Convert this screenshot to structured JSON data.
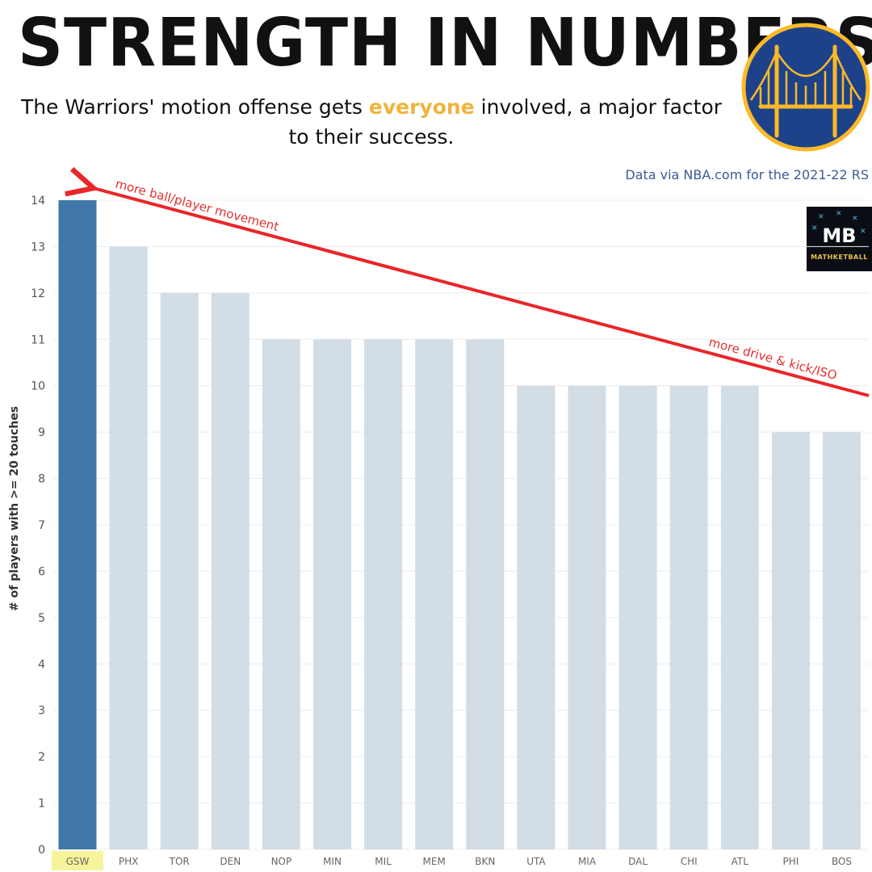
{
  "header": {
    "title": "STRENGTH IN NUMBERS",
    "subtitle_before": "The Warriors' motion offense gets ",
    "subtitle_highlight": "everyone",
    "subtitle_after": " involved, a major factor to their success.",
    "highlight_color": "#f0b43c"
  },
  "source": "Data via NBA.com for the 2021-22 RS",
  "badge": {
    "text": "MB",
    "subtext": "MATHKETBALL"
  },
  "logo": {
    "icon": "golden-state-bridge-logo-icon",
    "bg_color": "#1d428a",
    "accent_color": "#fdb927"
  },
  "chart_data": {
    "type": "bar",
    "ylabel": "# of players with >= 20 touches",
    "xlabel": "",
    "categories": [
      "GSW",
      "PHX",
      "TOR",
      "DEN",
      "NOP",
      "MIN",
      "MIL",
      "MEM",
      "BKN",
      "UTA",
      "MIA",
      "DAL",
      "CHI",
      "ATL",
      "PHI",
      "BOS"
    ],
    "values": [
      14,
      13,
      12,
      12,
      11,
      11,
      11,
      11,
      11,
      10,
      10,
      10,
      10,
      10,
      9,
      9
    ],
    "ylim": [
      0,
      14
    ],
    "yticks": [
      0,
      1,
      2,
      3,
      4,
      5,
      6,
      7,
      8,
      9,
      10,
      11,
      12,
      13,
      14
    ],
    "grid": true,
    "highlight_category": "GSW",
    "colors": {
      "highlight": "#3f78a8",
      "default": "#d3dde6",
      "highlight_label_bg": "#f6f49a",
      "arrow": "#e8262a"
    },
    "annotations": {
      "top": "more ball/player movement",
      "bottom": "more drive & kick/ISO"
    }
  }
}
